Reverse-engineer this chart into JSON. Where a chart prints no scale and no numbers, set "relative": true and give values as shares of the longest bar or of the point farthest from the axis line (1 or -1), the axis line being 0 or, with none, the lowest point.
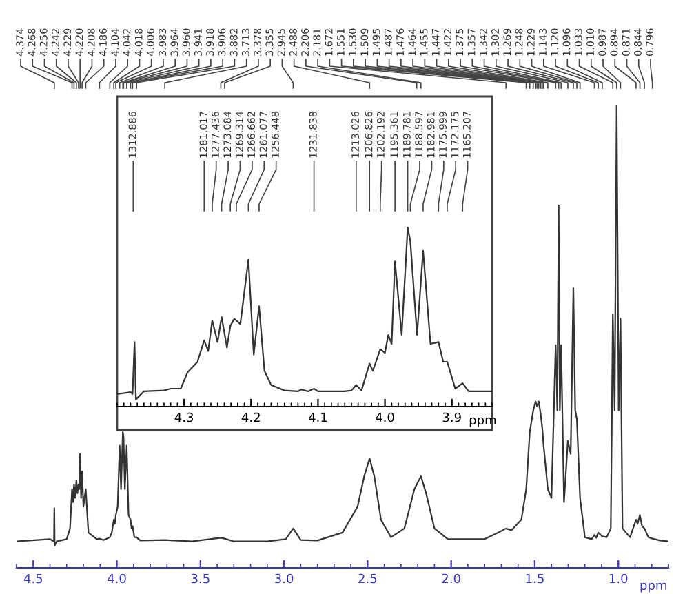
{
  "chart_data": [
    {
      "type": "line",
      "relative": true,
      "xlabel": "ppm",
      "xlim": [
        4.6,
        0.7
      ],
      "xticks": [
        4.5,
        {
          "value": 4.0,
          "label": "4.0"
        },
        3.5,
        {
          "value": 3.0,
          "label": "3.0"
        },
        2.5,
        {
          "value": 2.0,
          "label": "2.0"
        },
        1.5,
        {
          "value": 1.0,
          "label": "1.0"
        }
      ],
      "series": [
        {
          "color": "#333333",
          "x": [
            4.6,
            4.4,
            4.376,
            4.374,
            4.372,
            4.36,
            4.3,
            4.28,
            4.268,
            4.262,
            4.256,
            4.25,
            4.242,
            4.236,
            4.229,
            4.225,
            4.22,
            4.214,
            4.208,
            4.2,
            4.186,
            4.17,
            4.12,
            4.104,
            4.08,
            4.042,
            4.03,
            4.018,
            4.012,
            4.006,
            3.995,
            3.983,
            3.975,
            3.964,
            3.96,
            3.952,
            3.941,
            3.93,
            3.918,
            3.912,
            3.906,
            3.895,
            3.882,
            3.86,
            3.713,
            3.55,
            3.378,
            3.355,
            3.3,
            3.1,
            2.99,
            2.945,
            2.9,
            2.8,
            2.65,
            2.56,
            2.52,
            2.488,
            2.46,
            2.42,
            2.36,
            2.28,
            2.22,
            2.181,
            2.15,
            2.1,
            2.02,
            1.8,
            1.72,
            1.672,
            1.64,
            1.58,
            1.551,
            1.53,
            1.509,
            1.495,
            1.487,
            1.476,
            1.464,
            1.455,
            1.447,
            1.422,
            1.4,
            1.375,
            1.365,
            1.357,
            1.35,
            1.342,
            1.325,
            1.302,
            1.285,
            1.269,
            1.258,
            1.248,
            1.229,
            1.2,
            1.16,
            1.143,
            1.132,
            1.12,
            1.096,
            1.07,
            1.045,
            1.033,
            1.022,
            1.01,
            0.998,
            0.987,
            0.975,
            0.93,
            0.894,
            0.885,
            0.871,
            0.858,
            0.844,
            0.82,
            0.796,
            0.75,
            0.7
          ],
          "values": [
            0.057,
            0.062,
            0.057,
            0.129,
            0.048,
            0.057,
            0.062,
            0.085,
            0.17,
            0.142,
            0.18,
            0.151,
            0.189,
            0.161,
            0.18,
            0.17,
            0.246,
            0.151,
            0.208,
            0.132,
            0.17,
            0.076,
            0.062,
            0.063,
            0.06,
            0.066,
            0.076,
            0.104,
            0.095,
            0.114,
            0.132,
            0.264,
            0.17,
            0.293,
            0.283,
            0.17,
            0.264,
            0.114,
            0.104,
            0.085,
            0.09,
            0.066,
            0.066,
            0.059,
            0.06,
            0.057,
            0.065,
            0.063,
            0.057,
            0.057,
            0.062,
            0.085,
            0.06,
            0.059,
            0.076,
            0.132,
            0.198,
            0.236,
            0.198,
            0.104,
            0.066,
            0.085,
            0.17,
            0.198,
            0.161,
            0.085,
            0.062,
            0.062,
            0.076,
            0.085,
            0.081,
            0.104,
            0.17,
            0.293,
            0.34,
            0.359,
            0.349,
            0.359,
            0.33,
            0.302,
            0.264,
            0.17,
            0.151,
            0.481,
            0.34,
            0.783,
            0.34,
            0.481,
            0.142,
            0.274,
            0.246,
            0.604,
            0.34,
            0.321,
            0.151,
            0.066,
            0.062,
            0.071,
            0.065,
            0.076,
            0.068,
            0.066,
            0.085,
            0.547,
            0.34,
            1.0,
            0.34,
            0.538,
            0.085,
            0.066,
            0.104,
            0.095,
            0.114,
            0.09,
            0.085,
            0.066,
            0.063,
            0.059,
            0.057
          ]
        }
      ],
      "annotations": [
        {
          "text": "4.374",
          "x": 4.374
        },
        {
          "text": "4.268",
          "x": 4.268
        },
        {
          "text": "4.256",
          "x": 4.256
        },
        {
          "text": "4.242",
          "x": 4.242
        },
        {
          "text": "4.229",
          "x": 4.229
        },
        {
          "text": "4.220",
          "x": 4.22
        },
        {
          "text": "4.208",
          "x": 4.208
        },
        {
          "text": "4.186",
          "x": 4.186
        },
        {
          "text": "4.104",
          "x": 4.104
        },
        {
          "text": "4.042",
          "x": 4.042
        },
        {
          "text": "4.018",
          "x": 4.018
        },
        {
          "text": "4.006",
          "x": 4.006
        },
        {
          "text": "3.983",
          "x": 3.983
        },
        {
          "text": "3.964",
          "x": 3.964
        },
        {
          "text": "3.960",
          "x": 3.96
        },
        {
          "text": "3.941",
          "x": 3.941
        },
        {
          "text": "3.918",
          "x": 3.918
        },
        {
          "text": "3.906",
          "x": 3.906
        },
        {
          "text": "3.882",
          "x": 3.882
        },
        {
          "text": "3.713",
          "x": 3.713
        },
        {
          "text": "3.378",
          "x": 3.378
        },
        {
          "text": "3.355",
          "x": 3.355
        },
        {
          "text": "2.945",
          "x": 2.945
        },
        {
          "text": "2.488",
          "x": 2.488
        },
        {
          "text": "2.206",
          "x": 2.206
        },
        {
          "text": "2.181",
          "x": 2.181
        },
        {
          "text": "1.672",
          "x": 1.672
        },
        {
          "text": "1.551",
          "x": 1.551
        },
        {
          "text": "1.530",
          "x": 1.53
        },
        {
          "text": "1.509",
          "x": 1.509
        },
        {
          "text": "1.495",
          "x": 1.495
        },
        {
          "text": "1.487",
          "x": 1.487
        },
        {
          "text": "1.476",
          "x": 1.476
        },
        {
          "text": "1.464",
          "x": 1.464
        },
        {
          "text": "1.455",
          "x": 1.455
        },
        {
          "text": "1.447",
          "x": 1.447
        },
        {
          "text": "1.422",
          "x": 1.422
        },
        {
          "text": "1.375",
          "x": 1.375
        },
        {
          "text": "1.357",
          "x": 1.357
        },
        {
          "text": "1.342",
          "x": 1.342
        },
        {
          "text": "1.302",
          "x": 1.302
        },
        {
          "text": "1.269",
          "x": 1.269
        },
        {
          "text": "1.248",
          "x": 1.248
        },
        {
          "text": "1.229",
          "x": 1.229
        },
        {
          "text": "1.143",
          "x": 1.143
        },
        {
          "text": "1.120",
          "x": 1.12
        },
        {
          "text": "1.096",
          "x": 1.096
        },
        {
          "text": "1.033",
          "x": 1.033
        },
        {
          "text": "1.010",
          "x": 1.01
        },
        {
          "text": "0.987",
          "x": 0.987
        },
        {
          "text": "0.894",
          "x": 0.894
        },
        {
          "text": "0.871",
          "x": 0.871
        },
        {
          "text": "0.844",
          "x": 0.844
        },
        {
          "text": "0.796",
          "x": 0.796
        }
      ]
    },
    {
      "type": "line",
      "relative": true,
      "xlabel": "ppm",
      "xlim": [
        4.4,
        3.84
      ],
      "xticks": [
        4.3,
        4.2,
        4.1,
        {
          "value": 4.0,
          "label": "4.0"
        },
        3.9
      ],
      "series": [
        {
          "color": "#333333",
          "x": [
            4.4,
            4.38,
            4.377,
            4.374,
            4.372,
            4.36,
            4.33,
            4.32,
            4.305,
            4.295,
            4.28,
            4.27,
            4.264,
            4.258,
            4.25,
            4.244,
            4.236,
            4.231,
            4.225,
            4.222,
            4.216,
            4.204,
            4.196,
            4.188,
            4.18,
            4.17,
            4.15,
            4.13,
            4.125,
            4.115,
            4.106,
            4.1,
            4.06,
            4.05,
            4.043,
            4.035,
            4.023,
            4.018,
            4.007,
            4.0,
            3.995,
            3.99,
            3.985,
            3.975,
            3.966,
            3.962,
            3.952,
            3.943,
            3.932,
            3.92,
            3.913,
            3.907,
            3.895,
            3.884,
            3.875,
            3.84
          ],
          "values": [
            0.07,
            0.08,
            0.07,
            0.36,
            0.04,
            0.085,
            0.09,
            0.1,
            0.1,
            0.19,
            0.25,
            0.37,
            0.31,
            0.48,
            0.36,
            0.5,
            0.33,
            0.45,
            0.49,
            0.48,
            0.46,
            0.82,
            0.29,
            0.56,
            0.2,
            0.12,
            0.09,
            0.085,
            0.095,
            0.085,
            0.1,
            0.085,
            0.085,
            0.09,
            0.12,
            0.09,
            0.24,
            0.2,
            0.32,
            0.3,
            0.4,
            0.35,
            0.81,
            0.4,
            1.0,
            0.92,
            0.4,
            0.87,
            0.35,
            0.36,
            0.25,
            0.25,
            0.1,
            0.13,
            0.085,
            0.085
          ]
        }
      ],
      "annotations": [
        {
          "text": "1312.886",
          "x": 4.376
        },
        {
          "text": "1281.017",
          "x": 4.27
        },
        {
          "text": "1277.436",
          "x": 4.258
        },
        {
          "text": "1273.084",
          "x": 4.244
        },
        {
          "text": "1269.314",
          "x": 4.231
        },
        {
          "text": "1266.662",
          "x": 4.222
        },
        {
          "text": "1261.077",
          "x": 4.204
        },
        {
          "text": "1256.448",
          "x": 4.188
        },
        {
          "text": "1231.838",
          "x": 4.106
        },
        {
          "text": "1213.026",
          "x": 4.043
        },
        {
          "text": "1206.826",
          "x": 4.023
        },
        {
          "text": "1202.192",
          "x": 4.007
        },
        {
          "text": "1195.361",
          "x": 3.985
        },
        {
          "text": "1189.781",
          "x": 3.966
        },
        {
          "text": "1188.597",
          "x": 3.962
        },
        {
          "text": "1182.981",
          "x": 3.943
        },
        {
          "text": "1175.999",
          "x": 3.92
        },
        {
          "text": "1172.175",
          "x": 3.907
        },
        {
          "text": "1165.207",
          "x": 3.884
        }
      ]
    }
  ]
}
